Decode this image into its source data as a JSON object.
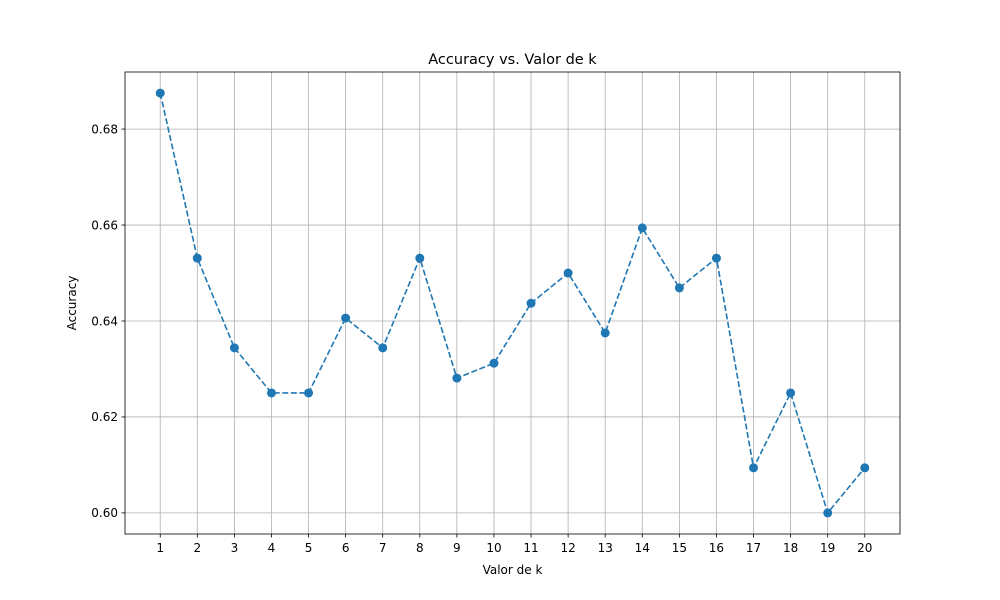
{
  "chart_data": {
    "type": "line",
    "title": "Accuracy vs. Valor de k",
    "xlabel": "Valor de k",
    "ylabel": "Accuracy",
    "x": [
      1,
      2,
      3,
      4,
      5,
      6,
      7,
      8,
      9,
      10,
      11,
      12,
      13,
      14,
      15,
      16,
      17,
      18,
      19,
      20
    ],
    "xticks": [
      "1",
      "2",
      "3",
      "4",
      "5",
      "6",
      "7",
      "8",
      "9",
      "10",
      "11",
      "12",
      "13",
      "14",
      "15",
      "16",
      "17",
      "18",
      "19",
      "20"
    ],
    "yticks": [
      "0.60",
      "0.62",
      "0.64",
      "0.66",
      "0.68"
    ],
    "ytick_values": [
      0.6,
      0.62,
      0.64,
      0.66,
      0.68
    ],
    "series": [
      {
        "values": [
          0.6875,
          0.6531,
          0.6344,
          0.625,
          0.625,
          0.6406,
          0.6344,
          0.6531,
          0.6281,
          0.6312,
          0.6437,
          0.65,
          0.6375,
          0.6594,
          0.6469,
          0.6531,
          0.6094,
          0.625,
          0.6,
          0.6094
        ],
        "color": "#1f77b4",
        "linestyle": "dashed",
        "marker": "circle"
      }
    ],
    "xlim": [
      0.05,
      20.95
    ],
    "ylim": [
      0.5956,
      0.6919
    ],
    "grid": true,
    "legend": false
  }
}
